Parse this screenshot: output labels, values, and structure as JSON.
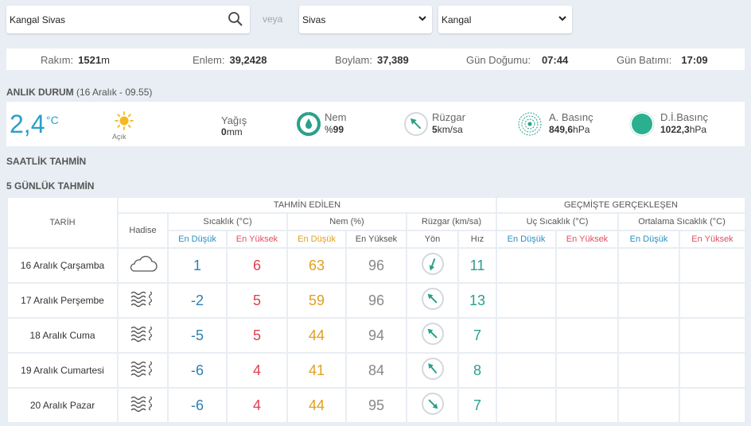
{
  "search": {
    "value": "Kangal Sivas",
    "placeholder": ""
  },
  "veya": "veya",
  "il_select": {
    "value": "Sivas"
  },
  "ilce_select": {
    "value": "Kangal"
  },
  "info": {
    "rakim_label": "Rakım:",
    "rakim_value": "1521",
    "rakim_unit": "m",
    "enlem_label": "Enlem:",
    "enlem_value": "39,2428",
    "boylam_label": "Boylam:",
    "boylam_value": "37,389",
    "gundogumu_label": "Gün Doğumu:",
    "gundogumu_value": "07:44",
    "gunbatimi_label": "Gün Batımı:",
    "gunbatimi_value": "17:09"
  },
  "anlik": {
    "title": "ANLIK DURUM",
    "subtitle": "(16 Aralık - 09.55)",
    "temp": "2,4",
    "temp_unit": "°C",
    "condition": "Açık",
    "yagis_label": "Yağış",
    "yagis_value": "0",
    "yagis_unit": "mm",
    "nem_label": "Nem",
    "nem_prefix": "%",
    "nem_value": "99",
    "nem_fraction": 0.99,
    "ruzgar_label": "Rüzgar",
    "ruzgar_value": "5",
    "ruzgar_unit": "km/sa",
    "abasinc_label": "A. Basınç",
    "abasinc_value": "849,6",
    "abasinc_unit": "hPa",
    "dibasinc_label": "D.İ.Basınç",
    "dibasinc_value": "1022,3",
    "dibasinc_unit": "hPa"
  },
  "saatlik_title": "SAATLİK TAHMİN",
  "gunluk_title": "5 GÜNLÜK TAHMİN",
  "table": {
    "tahmin_edilen": "TAHMİN EDİLEN",
    "gecmiste": "GEÇMİŞTE GERÇEKLEŞEN",
    "tarih": "TARİH",
    "hadise": "Hadise",
    "sicaklik": "Sıcaklık (°C)",
    "nem": "Nem (%)",
    "ruzgar": "Rüzgar (km/sa)",
    "uc_sicaklik": "Uç Sıcaklık (°C)",
    "ort_sicaklik": "Ortalama Sıcaklık (°C)",
    "en_dusuk": "En Düşük",
    "en_yuksek": "En Yüksek",
    "yon": "Yön",
    "hiz": "Hız",
    "rows": [
      {
        "date": "16 Aralık Çarşamba",
        "icon": "cloud-icon",
        "min": "1",
        "max": "6",
        "nem_min": "63",
        "nem_max": "96",
        "wind_deg": 200,
        "hiz": "11"
      },
      {
        "date": "17 Aralık Perşembe",
        "icon": "fog-icon",
        "min": "-2",
        "max": "5",
        "nem_min": "59",
        "nem_max": "96",
        "wind_deg": 315,
        "hiz": "13"
      },
      {
        "date": "18 Aralık Cuma",
        "icon": "fog-icon",
        "min": "-5",
        "max": "5",
        "nem_min": "44",
        "nem_max": "94",
        "wind_deg": 315,
        "hiz": "7"
      },
      {
        "date": "19 Aralık Cumartesi",
        "icon": "fog-icon",
        "min": "-6",
        "max": "4",
        "nem_min": "41",
        "nem_max": "84",
        "wind_deg": 320,
        "hiz": "8"
      },
      {
        "date": "20 Aralık Pazar",
        "icon": "fog-icon",
        "min": "-6",
        "max": "4",
        "nem_min": "44",
        "nem_max": "95",
        "wind_deg": 135,
        "hiz": "7"
      }
    ]
  }
}
